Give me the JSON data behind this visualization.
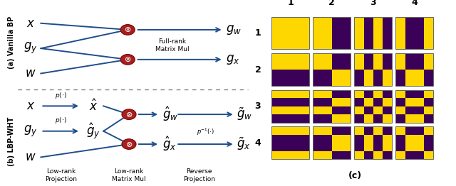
{
  "yellow": "#FFD700",
  "purple": "#3B0057",
  "patterns": [
    [
      [
        1,
        1,
        1,
        1
      ],
      [
        1,
        1,
        1,
        1
      ],
      [
        1,
        1,
        1,
        1
      ],
      [
        1,
        1,
        1,
        1
      ]
    ],
    [
      [
        1,
        1,
        0,
        0
      ],
      [
        1,
        1,
        0,
        0
      ],
      [
        1,
        1,
        0,
        0
      ],
      [
        1,
        1,
        0,
        0
      ]
    ],
    [
      [
        1,
        0,
        1,
        0
      ],
      [
        1,
        0,
        1,
        0
      ],
      [
        1,
        0,
        1,
        0
      ],
      [
        1,
        0,
        1,
        0
      ]
    ],
    [
      [
        1,
        0,
        0,
        1
      ],
      [
        1,
        0,
        0,
        1
      ],
      [
        1,
        0,
        0,
        1
      ],
      [
        1,
        0,
        0,
        1
      ]
    ],
    [
      [
        1,
        1,
        1,
        1
      ],
      [
        1,
        1,
        1,
        1
      ],
      [
        0,
        0,
        0,
        0
      ],
      [
        0,
        0,
        0,
        0
      ]
    ],
    [
      [
        1,
        1,
        0,
        0
      ],
      [
        1,
        1,
        0,
        0
      ],
      [
        0,
        0,
        1,
        1
      ],
      [
        0,
        0,
        1,
        1
      ]
    ],
    [
      [
        1,
        0,
        1,
        0
      ],
      [
        1,
        0,
        1,
        0
      ],
      [
        0,
        1,
        0,
        1
      ],
      [
        0,
        1,
        0,
        1
      ]
    ],
    [
      [
        1,
        0,
        0,
        1
      ],
      [
        1,
        0,
        0,
        1
      ],
      [
        0,
        1,
        1,
        0
      ],
      [
        0,
        1,
        1,
        0
      ]
    ],
    [
      [
        1,
        1,
        1,
        1
      ],
      [
        0,
        0,
        0,
        0
      ],
      [
        1,
        1,
        1,
        1
      ],
      [
        0,
        0,
        0,
        0
      ]
    ],
    [
      [
        1,
        1,
        0,
        0
      ],
      [
        0,
        0,
        1,
        1
      ],
      [
        1,
        1,
        0,
        0
      ],
      [
        0,
        0,
        1,
        1
      ]
    ],
    [
      [
        1,
        0,
        1,
        0
      ],
      [
        0,
        1,
        0,
        1
      ],
      [
        1,
        0,
        1,
        0
      ],
      [
        0,
        1,
        0,
        1
      ]
    ],
    [
      [
        1,
        0,
        0,
        1
      ],
      [
        0,
        1,
        1,
        0
      ],
      [
        1,
        0,
        0,
        1
      ],
      [
        0,
        1,
        1,
        0
      ]
    ],
    [
      [
        1,
        1,
        1,
        1
      ],
      [
        0,
        0,
        0,
        0
      ],
      [
        0,
        0,
        0,
        0
      ],
      [
        1,
        1,
        1,
        1
      ]
    ],
    [
      [
        1,
        1,
        0,
        0
      ],
      [
        0,
        0,
        1,
        1
      ],
      [
        0,
        0,
        1,
        1
      ],
      [
        1,
        1,
        0,
        0
      ]
    ],
    [
      [
        1,
        0,
        1,
        0
      ],
      [
        0,
        1,
        0,
        1
      ],
      [
        0,
        1,
        0,
        1
      ],
      [
        1,
        0,
        1,
        0
      ]
    ],
    [
      [
        1,
        0,
        0,
        1
      ],
      [
        0,
        1,
        1,
        0
      ],
      [
        0,
        1,
        1,
        0
      ],
      [
        1,
        0,
        0,
        1
      ]
    ]
  ],
  "arrow_color": "#1F4E8C",
  "circle_color": "#A52020",
  "bg_color": "#FFFFFF"
}
